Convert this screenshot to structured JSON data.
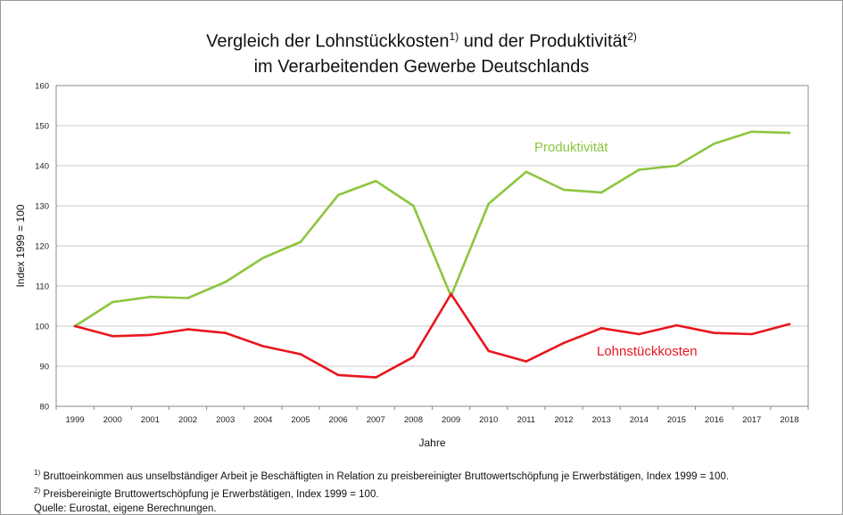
{
  "chart_data": {
    "type": "line",
    "title_line1": "Vergleich der Lohnstückkosten",
    "title_mark1": "1)",
    "title_mid": " und der Produktivität",
    "title_mark2": "2)",
    "title_line2": "im Verarbeitenden Gewerbe Deutschlands",
    "xlabel": "Jahre",
    "ylabel": "Index 1999 = 100",
    "ylim": [
      80,
      160
    ],
    "yticks": [
      80,
      90,
      100,
      110,
      120,
      130,
      140,
      150,
      160
    ],
    "grid": true,
    "x": [
      "1999",
      "2000",
      "2001",
      "2002",
      "2003",
      "2004",
      "2005",
      "2006",
      "2007",
      "2008",
      "2009",
      "2010",
      "2011",
      "2012",
      "2013",
      "2014",
      "2015",
      "2016",
      "2017",
      "2018"
    ],
    "series": [
      {
        "name": "Produktivität",
        "color": "#8cc63f",
        "values": [
          100,
          106,
          107.3,
          107,
          111,
          117,
          121,
          132.7,
          136.2,
          130,
          107.5,
          130.5,
          138.5,
          134,
          133.3,
          139,
          140,
          145.5,
          148.5,
          148.2
        ]
      },
      {
        "name": "Lohnstückkosten",
        "color": "#e8161e",
        "values": [
          100,
          97.5,
          97.8,
          99.2,
          98.3,
          95,
          93,
          87.8,
          87.2,
          92.3,
          108,
          93.8,
          91.2,
          95.8,
          99.5,
          98,
          100.2,
          98.3,
          98,
          100.5
        ]
      }
    ]
  },
  "footnotes": {
    "note1_mark": "1)",
    "note1_text": " Bruttoeinkommen aus unselbständiger Arbeit je Beschäftigten in Relation zu preisbereinigter Bruttowertschöpfung je Erwerbstätigen, Index 1999 = 100.",
    "note2_mark": "2)",
    "note2_text": " Preisbereinigte Bruttowertschöpfung je Erwerbstätigen, Index 1999 = 100.",
    "source": "Quelle: Eurostat, eigene Berechnungen."
  }
}
